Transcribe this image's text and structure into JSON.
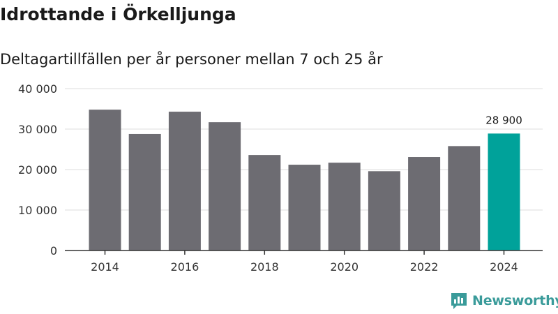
{
  "title": "Idrottande i Örkelljunga",
  "subtitle": "Deltagartillfällen per år personer mellan 7 och 25 år",
  "brand": "Newsworthy",
  "colors": {
    "bar": "#6d6c72",
    "highlight": "#00a29a",
    "grid": "#dddddd",
    "axis": "#333333"
  },
  "chart_data": {
    "type": "bar",
    "title": "Deltagartillfällen per år personer mellan 7 och 25 år",
    "xlabel": "",
    "ylabel": "",
    "categories": [
      "2014",
      "2015",
      "2016",
      "2017",
      "2018",
      "2019",
      "2020",
      "2021",
      "2022",
      "2023",
      "2024"
    ],
    "values": [
      34800,
      28800,
      34300,
      31700,
      23600,
      21200,
      21700,
      19600,
      23100,
      25800,
      28900
    ],
    "ylim": [
      0,
      40000
    ],
    "yticks": [
      0,
      10000,
      20000,
      30000,
      40000
    ],
    "ytick_labels": [
      "0",
      "10 000",
      "20 000",
      "30 000",
      "40 000"
    ],
    "xtick_labels": [
      "2014",
      "2016",
      "2018",
      "2020",
      "2022",
      "2024"
    ],
    "highlight_index": 10,
    "highlight_label": "28 900",
    "grid": true
  }
}
